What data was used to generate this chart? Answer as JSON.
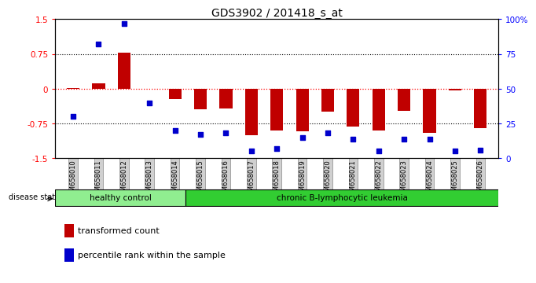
{
  "title": "GDS3902 / 201418_s_at",
  "samples": [
    "GSM658010",
    "GSM658011",
    "GSM658012",
    "GSM658013",
    "GSM658014",
    "GSM658015",
    "GSM658016",
    "GSM658017",
    "GSM658018",
    "GSM658019",
    "GSM658020",
    "GSM658021",
    "GSM658022",
    "GSM658023",
    "GSM658024",
    "GSM658025",
    "GSM658026"
  ],
  "transformed_count": [
    0.02,
    0.12,
    0.78,
    0.0,
    -0.22,
    -0.45,
    -0.42,
    -1.0,
    -0.9,
    -0.92,
    -0.5,
    -0.82,
    -0.9,
    -0.48,
    -0.95,
    -0.04,
    -0.85
  ],
  "percentile_rank": [
    30,
    82,
    97,
    40,
    20,
    17,
    18,
    5,
    7,
    15,
    18,
    14,
    5,
    14,
    14,
    5,
    6
  ],
  "healthy_control_count": 5,
  "bar_color": "#c00000",
  "dot_color": "#0000cc",
  "ylim_left": [
    -1.5,
    1.5
  ],
  "ylim_right": [
    0,
    100
  ],
  "yticks_left": [
    -1.5,
    -0.75,
    0.0,
    0.75,
    1.5
  ],
  "yticks_right": [
    0,
    25,
    50,
    75,
    100
  ],
  "ytick_labels_left": [
    "-1.5",
    "-0.75",
    "0",
    "0.75",
    "1.5"
  ],
  "ytick_labels_right": [
    "0",
    "25",
    "50",
    "75",
    "100%"
  ],
  "healthy_label": "healthy control",
  "disease_label": "chronic B-lymphocytic leukemia",
  "disease_state_label": "disease state",
  "legend_bar": "transformed count",
  "legend_dot": "percentile rank within the sample",
  "healthy_color": "#90ee90",
  "disease_color": "#32cd32",
  "bg_color": "#ffffff",
  "bar_width": 0.5
}
